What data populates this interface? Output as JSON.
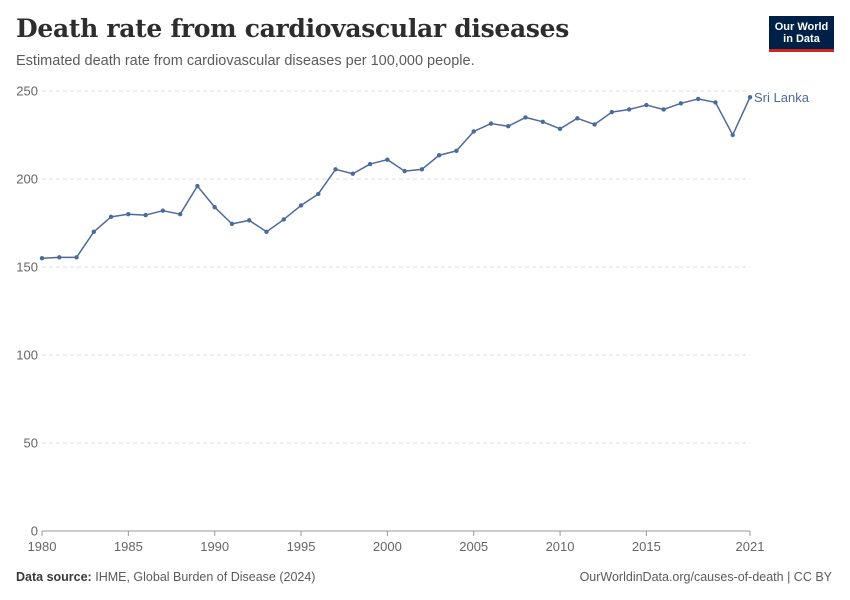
{
  "header": {
    "title": "Death rate from cardiovascular diseases",
    "subtitle": "Estimated death rate from cardiovascular diseases per 100,000 people."
  },
  "logo": {
    "line1": "Our World",
    "line2": "in Data"
  },
  "footer": {
    "source_label": "Data source:",
    "source_text": "IHME, Global Burden of Disease (2024)",
    "url_text": "OurWorldinData.org/causes-of-death | CC BY"
  },
  "colors": {
    "series": "#4c6a9c",
    "grid": "#dddddd",
    "logo_bg": "#002147",
    "logo_accent": "#ce261e"
  },
  "chart_data": {
    "type": "line",
    "title": "Death rate from cardiovascular diseases",
    "subtitle": "Estimated death rate from cardiovascular diseases per 100,000 people.",
    "xlabel": "",
    "ylabel": "",
    "xlim": [
      1980,
      2021
    ],
    "ylim": [
      0,
      250
    ],
    "yticks": [
      0,
      50,
      100,
      150,
      200,
      250
    ],
    "xticks": [
      1980,
      1985,
      1990,
      1995,
      2000,
      2005,
      2010,
      2015,
      2021
    ],
    "grid": true,
    "series": [
      {
        "name": "Sri Lanka",
        "x": [
          1980,
          1981,
          1982,
          1983,
          1984,
          1985,
          1986,
          1987,
          1988,
          1989,
          1990,
          1991,
          1992,
          1993,
          1994,
          1995,
          1996,
          1997,
          1998,
          1999,
          2000,
          2001,
          2002,
          2003,
          2004,
          2005,
          2006,
          2007,
          2008,
          2009,
          2010,
          2011,
          2012,
          2013,
          2014,
          2015,
          2016,
          2017,
          2018,
          2019,
          2020,
          2021
        ],
        "values": [
          155,
          155.5,
          155.5,
          170,
          178.5,
          180,
          179.5,
          182,
          180,
          196,
          184,
          174.5,
          176.5,
          170,
          177,
          185,
          191.5,
          205.5,
          203,
          208.5,
          211,
          204.5,
          205.5,
          213.5,
          216,
          227,
          231.5,
          230,
          235,
          232.5,
          228.5,
          234.5,
          231,
          238,
          239.5,
          242,
          239.5,
          243,
          245.5,
          243.5,
          225,
          246.5
        ]
      }
    ]
  }
}
